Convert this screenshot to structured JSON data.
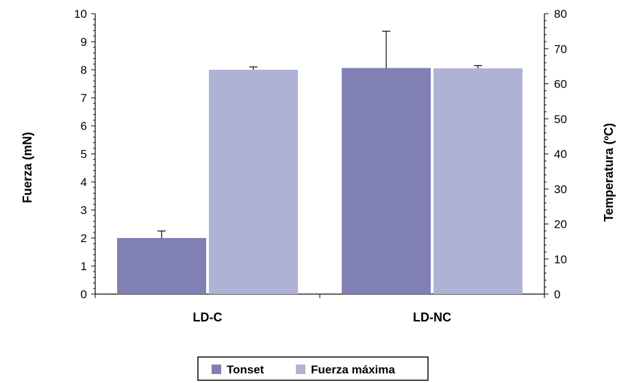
{
  "chart_data": {
    "type": "bar",
    "categories": [
      "LD-C",
      "LD-NC"
    ],
    "series": [
      {
        "name": "Tonset",
        "axis": "right",
        "values": [
          16,
          64.5
        ],
        "error": [
          2,
          10.5
        ],
        "color": "#8080b4"
      },
      {
        "name": "Fuerza máxima",
        "axis": "left",
        "values": [
          8,
          8.05
        ],
        "error": [
          0.1,
          0.1
        ],
        "color": "#aeb2d4"
      }
    ],
    "y_left": {
      "label": "Fuerza (mN)",
      "lim": [
        0,
        10
      ],
      "ticks": [
        "0",
        "1",
        "2",
        "3",
        "4",
        "5",
        "6",
        "7",
        "8",
        "9",
        "10"
      ]
    },
    "y_right": {
      "label": "Temperatura (ºC)",
      "lim": [
        0,
        80
      ],
      "ticks": [
        "0",
        "10",
        "20",
        "30",
        "40",
        "50",
        "60",
        "70",
        "80"
      ]
    },
    "legend": {
      "placement": "bottom-center"
    },
    "grid": false
  }
}
